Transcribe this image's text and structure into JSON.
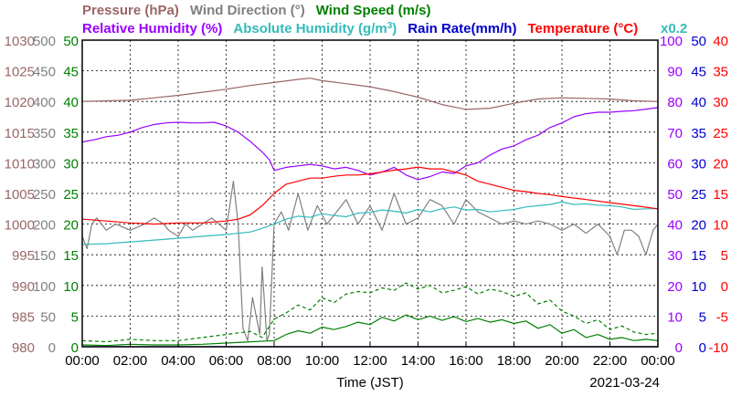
{
  "chart_data": {
    "type": "line",
    "date": "2021-03-24",
    "xlabel": "Time (JST)",
    "x_ticks": [
      "00:00",
      "02:00",
      "04:00",
      "06:00",
      "08:00",
      "10:00",
      "12:00",
      "14:00",
      "16:00",
      "18:00",
      "20:00",
      "22:00",
      "00:00"
    ],
    "grid": true,
    "legend_position": "top",
    "legend": [
      {
        "parts": [
          {
            "text": "Pressure (hPa)",
            "color": "#996666"
          }
        ]
      },
      {
        "parts": [
          {
            "text": "Wind Direction (°)",
            "color": "#808080"
          }
        ]
      },
      {
        "parts": [
          {
            "text": "Wind Speed (m/s)",
            "color": "#008000"
          }
        ]
      },
      {
        "parts": [
          {
            "text": "Relative Humidity (%)",
            "color": "#9900ff"
          }
        ]
      },
      {
        "parts": [
          {
            "text": "Absolute Humidity (g/m",
            "color": "#33bbbb"
          },
          {
            "text": "3",
            "color": "#33bbbb",
            "sup": true
          },
          {
            "text": ")",
            "color": "#33bbbb"
          }
        ]
      },
      {
        "parts": [
          {
            "text": "Rain Rate(mm/h)",
            "color": "#0000cc"
          }
        ]
      },
      {
        "parts": [
          {
            "text": "Temperature (",
            "color": "#ff0000"
          },
          {
            "text": "°",
            "color": "#ff0000"
          },
          {
            "text": "C)",
            "color": "#ff0000"
          }
        ]
      },
      {
        "parts": [
          {
            "text": "x0.2",
            "color": "#33bbbb"
          }
        ]
      }
    ],
    "axes": {
      "pressure": {
        "label": "Pressure (hPa)",
        "color": "#996666",
        "range": [
          980,
          1030
        ],
        "ticks": [
          "1030",
          "1025",
          "1020",
          "1015",
          "1010",
          "1005",
          "1000",
          "995",
          "990",
          "985",
          "980"
        ]
      },
      "wind_direction": {
        "label": "Wind Direction (°)",
        "color": "#808080",
        "range": [
          0,
          500
        ],
        "ticks": [
          "500",
          "450",
          "400",
          "350",
          "300",
          "250",
          "200",
          "150",
          "100",
          "50",
          "0"
        ]
      },
      "wind_speed": {
        "label": "Wind Speed (m/s)",
        "color": "#008000",
        "range": [
          0,
          50
        ],
        "ticks": [
          "50",
          "45",
          "40",
          "35",
          "30",
          "25",
          "20",
          "15",
          "10",
          "5",
          "0"
        ]
      },
      "humidity": {
        "label": "Relative Humidity (%)",
        "color": "#9900ff",
        "range": [
          0,
          100
        ],
        "ticks": [
          "100",
          "90",
          "80",
          "70",
          "60",
          "50",
          "40",
          "30",
          "20",
          "10",
          "0"
        ]
      },
      "rain_rate": {
        "label": "Rain Rate(mm/h)",
        "color": "#0000cc",
        "range": [
          0,
          50
        ],
        "ticks": [
          "50",
          "45",
          "40",
          "35",
          "30",
          "25",
          "20",
          "15",
          "10",
          "5",
          "0"
        ]
      },
      "temperature": {
        "label": "Temperature (°C)",
        "color": "#ff0000",
        "range": [
          -10,
          40
        ],
        "ticks": [
          "40",
          "35",
          "30",
          "25",
          "20",
          "15",
          "10",
          "5",
          "0",
          "-5",
          "-10"
        ]
      }
    },
    "series": [
      {
        "name": "Pressure (hPa)",
        "axis": "pressure",
        "color": "#996666",
        "style": "solid",
        "x": [
          0,
          1,
          2,
          3,
          4,
          5,
          6,
          7,
          8,
          9,
          9.5,
          10,
          11,
          12,
          13,
          14,
          15,
          16,
          17,
          18,
          19,
          20,
          21,
          22,
          23,
          24
        ],
        "y": [
          1020.0,
          1020.1,
          1020.2,
          1020.6,
          1021.0,
          1021.5,
          1022.0,
          1022.6,
          1023.1,
          1023.6,
          1023.8,
          1023.4,
          1022.9,
          1022.4,
          1021.6,
          1020.7,
          1019.5,
          1018.7,
          1018.9,
          1019.7,
          1020.4,
          1020.6,
          1020.5,
          1020.4,
          1020.1,
          1020.0
        ]
      },
      {
        "name": "Wind Direction (°)",
        "axis": "wind_direction",
        "color": "#808080",
        "style": "solid",
        "x": [
          0,
          0.2,
          0.4,
          0.6,
          1,
          1.4,
          2,
          2.6,
          3,
          3.4,
          3.6,
          4,
          4.3,
          4.6,
          5,
          5.4,
          6,
          6.3,
          6.5,
          6.7,
          6.9,
          7.1,
          7.4,
          7.5,
          7.7,
          7.8,
          8,
          8.3,
          8.6,
          9,
          9.4,
          9.8,
          10.2,
          10.6,
          11,
          11.5,
          12,
          12.5,
          13,
          13.5,
          14,
          14.5,
          15,
          15.5,
          16,
          16.5,
          17,
          17.5,
          18,
          18.5,
          19,
          19.5,
          20,
          20.5,
          21,
          21.5,
          22,
          22.3,
          22.6,
          22.9,
          23.2,
          23.5,
          23.8,
          24
        ],
        "y": [
          180,
          160,
          200,
          210,
          190,
          200,
          190,
          200,
          210,
          200,
          190,
          180,
          200,
          190,
          200,
          210,
          190,
          270,
          200,
          30,
          10,
          80,
          20,
          130,
          10,
          20,
          200,
          220,
          190,
          250,
          190,
          230,
          200,
          220,
          240,
          200,
          230,
          190,
          250,
          200,
          210,
          240,
          230,
          200,
          240,
          220,
          210,
          200,
          205,
          200,
          205,
          200,
          190,
          200,
          185,
          200,
          180,
          150,
          190,
          190,
          180,
          150,
          190,
          200
        ]
      },
      {
        "name": "Wind Speed (m/s)",
        "axis": "wind_speed",
        "color": "#008000",
        "style": "solid",
        "x": [
          0,
          1,
          2,
          3,
          4,
          5,
          6,
          7,
          8,
          8.5,
          9,
          9.5,
          10,
          10.5,
          11,
          11.5,
          12,
          12.5,
          13,
          13.5,
          14,
          14.5,
          15,
          15.5,
          16,
          16.5,
          17,
          17.5,
          18,
          18.5,
          19,
          19.5,
          20,
          20.5,
          21,
          21.5,
          22,
          22.5,
          23,
          23.5,
          24
        ],
        "y": [
          0.3,
          0.2,
          0.4,
          0.3,
          0.3,
          0.4,
          0.6,
          0.8,
          1.0,
          2.0,
          2.6,
          2.2,
          3.2,
          2.8,
          3.3,
          4.0,
          3.6,
          4.8,
          4.2,
          5.2,
          4.4,
          5.0,
          4.3,
          4.9,
          4.1,
          4.6,
          4.0,
          4.4,
          3.8,
          4.2,
          3.0,
          3.6,
          2.2,
          2.8,
          1.5,
          2.0,
          1.2,
          1.5,
          1.0,
          1.2,
          1.0
        ]
      },
      {
        "name": "Wind Speed (m/s)",
        "axis": "wind_speed",
        "color": "#008000",
        "style": "dashed",
        "x": [
          0,
          1,
          2,
          3,
          4,
          5,
          6,
          7,
          7.5,
          8,
          8.5,
          9,
          9.5,
          10,
          10.5,
          11,
          11.5,
          12,
          12.5,
          13,
          13.5,
          14,
          14.5,
          15,
          15.5,
          16,
          16.5,
          17,
          17.5,
          18,
          18.5,
          19,
          19.5,
          20,
          20.5,
          21,
          21.5,
          22,
          22.5,
          23,
          23.5,
          24
        ],
        "y": [
          1.0,
          0.8,
          1.2,
          1.0,
          1.0,
          1.5,
          2.0,
          2.5,
          1.5,
          4.5,
          5.5,
          6.8,
          6.0,
          8.0,
          7.2,
          8.6,
          9.0,
          8.8,
          9.6,
          9.2,
          10.4,
          9.4,
          10.0,
          8.8,
          9.2,
          9.8,
          8.6,
          9.4,
          9.0,
          8.2,
          8.8,
          7.0,
          7.6,
          5.8,
          5.0,
          3.8,
          4.4,
          2.8,
          3.4,
          2.4,
          2.0,
          2.2
        ]
      },
      {
        "name": "Relative Humidity (%)",
        "axis": "humidity",
        "color": "#9900ff",
        "style": "solid",
        "x": [
          0,
          0.5,
          1,
          1.5,
          2,
          2.5,
          3,
          3.5,
          4,
          4.5,
          5,
          5.5,
          6,
          6.5,
          7,
          7.5,
          7.8,
          8,
          8.5,
          9,
          9.5,
          10,
          10.5,
          11,
          11.5,
          12,
          12.5,
          13,
          13.5,
          14,
          14.5,
          15,
          15.5,
          16,
          16.5,
          17,
          17.5,
          18,
          18.5,
          19,
          19.5,
          20,
          20.5,
          21,
          21.5,
          22,
          22.5,
          23,
          23.5,
          24
        ],
        "y": [
          66.8,
          67.5,
          68.5,
          69.0,
          70.0,
          71.5,
          72.5,
          73.0,
          73.2,
          73.0,
          73.0,
          73.2,
          72.0,
          70.0,
          67.0,
          63.5,
          61.0,
          57.5,
          58.5,
          59.0,
          59.5,
          59.0,
          58.0,
          58.5,
          57.5,
          56.0,
          57.0,
          58.5,
          56.0,
          54.5,
          55.5,
          57.0,
          56.5,
          59.0,
          60.0,
          62.5,
          64.5,
          65.5,
          67.5,
          69.0,
          71.5,
          73.0,
          75.0,
          76.0,
          76.5,
          76.5,
          76.8,
          77.0,
          77.5,
          78.0
        ]
      },
      {
        "name": "Absolute Humidity (g/m3)",
        "axis": "humidity",
        "color": "#33bbbb",
        "style": "solid",
        "x": [
          0,
          1,
          2,
          3,
          4,
          5,
          6,
          7,
          7.5,
          8,
          8.5,
          9,
          9.5,
          10,
          10.5,
          11,
          11.5,
          12,
          12.5,
          13,
          13.5,
          14,
          14.5,
          15,
          15.5,
          16,
          16.5,
          17,
          17.5,
          18,
          18.5,
          19,
          19.5,
          20,
          20.5,
          21,
          21.5,
          22,
          22.5,
          23,
          23.5,
          24
        ],
        "y": [
          33.4,
          33.6,
          34.2,
          34.8,
          35.4,
          36.0,
          36.6,
          37.4,
          38.6,
          40.0,
          41.6,
          42.6,
          42.2,
          43.4,
          42.8,
          42.4,
          43.6,
          43.8,
          44.6,
          44.2,
          43.6,
          44.8,
          44.0,
          45.0,
          45.6,
          44.6,
          44.8,
          44.0,
          44.4,
          44.8,
          45.6,
          46.0,
          46.4,
          47.2,
          46.4,
          46.6,
          46.2,
          46.0,
          45.6,
          44.8,
          45.0,
          45.0
        ]
      },
      {
        "name": "Rain Rate(mm/h)",
        "axis": "rain_rate",
        "color": "#0000cc",
        "style": "solid",
        "x": [
          0,
          24
        ],
        "y": [
          0,
          0
        ]
      },
      {
        "name": "Temperature (°C)",
        "axis": "temperature",
        "color": "#ff0000",
        "style": "solid",
        "x": [
          0,
          1,
          2,
          3,
          4,
          5,
          6,
          6.5,
          7,
          7.5,
          8,
          8.5,
          9,
          9.5,
          10,
          10.5,
          11,
          11.5,
          12,
          12.5,
          13,
          13.5,
          14,
          14.5,
          15,
          15.5,
          16,
          16.5,
          17,
          17.5,
          18,
          18.5,
          19,
          19.5,
          20,
          21,
          22,
          23,
          24
        ],
        "y": [
          10.8,
          10.5,
          10.2,
          10.0,
          10.2,
          10.2,
          10.5,
          10.8,
          11.5,
          13.0,
          15.0,
          16.5,
          17.0,
          17.5,
          17.5,
          17.8,
          18.0,
          18.0,
          18.2,
          18.5,
          18.8,
          19.0,
          19.3,
          19.0,
          19.0,
          18.5,
          18.0,
          17.0,
          16.5,
          16.0,
          15.5,
          15.3,
          15.0,
          14.8,
          14.5,
          14.0,
          13.5,
          13.0,
          12.5
        ]
      }
    ]
  }
}
